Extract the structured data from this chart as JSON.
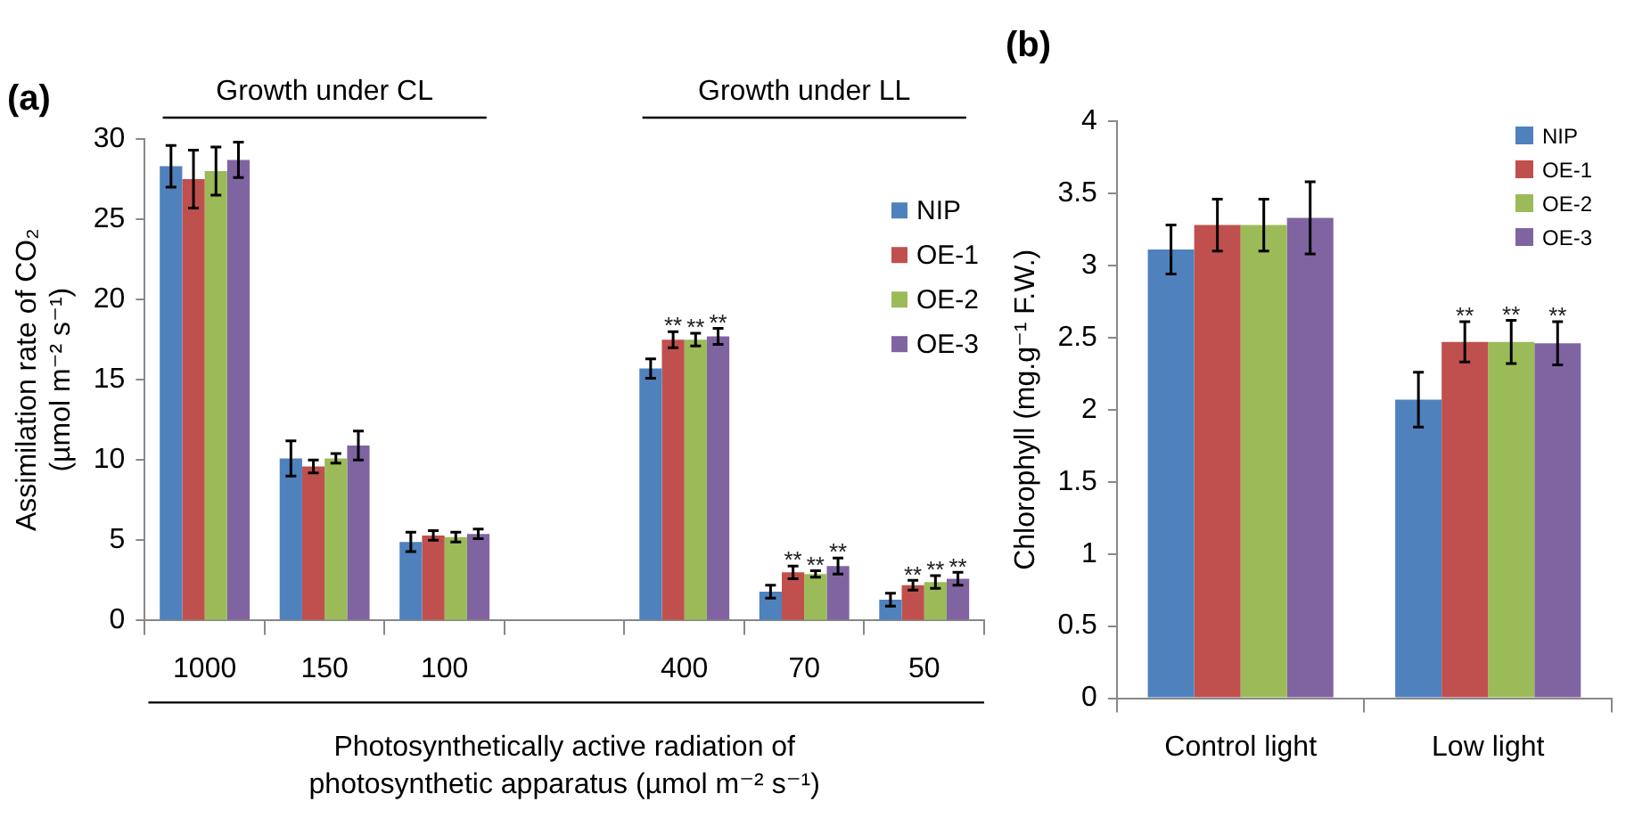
{
  "chart_data": [
    {
      "type": "bar",
      "title": "(a)",
      "ylabel": "Assimilation rate of CO₂ (µmol m⁻² s⁻¹)",
      "xlabel": "Photosynthetically active radiation of photosynthetic apparatus (µmol m⁻² s⁻¹)",
      "categories": [
        "1000",
        "150",
        "100",
        null,
        "400",
        "70",
        "50"
      ],
      "series": [
        {
          "name": "NIP",
          "color": "#4f81bd",
          "values": [
            28.3,
            10.1,
            4.9,
            null,
            15.7,
            1.8,
            1.3
          ],
          "errors": [
            1.3,
            1.1,
            0.6,
            null,
            0.6,
            0.4,
            0.4
          ]
        },
        {
          "name": "OE-1",
          "color": "#c0504d",
          "values": [
            27.5,
            9.6,
            5.3,
            null,
            17.5,
            3.0,
            2.2
          ],
          "errors": [
            1.8,
            0.4,
            0.3,
            null,
            0.5,
            0.4,
            0.3
          ],
          "value_labels": [
            null,
            null,
            null,
            null,
            "**",
            "**",
            "**"
          ]
        },
        {
          "name": "OE-2",
          "color": "#9bbb59",
          "values": [
            28.0,
            10.1,
            5.2,
            null,
            17.5,
            2.9,
            2.4
          ],
          "errors": [
            1.5,
            0.3,
            0.3,
            null,
            0.4,
            0.2,
            0.4
          ],
          "value_labels": [
            null,
            null,
            null,
            null,
            "**",
            "**",
            "**"
          ]
        },
        {
          "name": "OE-3",
          "color": "#8064a2",
          "values": [
            28.7,
            10.9,
            5.4,
            null,
            17.7,
            3.4,
            2.6
          ],
          "errors": [
            1.1,
            0.9,
            0.3,
            null,
            0.5,
            0.5,
            0.4
          ],
          "value_labels": [
            null,
            null,
            null,
            null,
            "**",
            "**",
            "**"
          ]
        }
      ],
      "ylim": [
        0,
        30
      ],
      "yticks": [
        0,
        5,
        10,
        15,
        20,
        25,
        30
      ],
      "grid": false,
      "legend": "right",
      "annotations": [
        "Growth under CL",
        "Growth under LL"
      ]
    },
    {
      "type": "bar",
      "title": "(b)",
      "ylabel": "Chlorophyll (mg.g⁻¹ F.W.)",
      "categories": [
        "Control light",
        "Low light"
      ],
      "series": [
        {
          "name": "NIP",
          "color": "#4f81bd",
          "values": [
            3.11,
            2.07
          ],
          "errors": [
            0.17,
            0.19
          ]
        },
        {
          "name": "OE-1",
          "color": "#c0504d",
          "values": [
            3.28,
            2.47
          ],
          "errors": [
            0.18,
            0.14
          ],
          "value_labels": [
            null,
            "**"
          ]
        },
        {
          "name": "OE-2",
          "color": "#9bbb59",
          "values": [
            3.28,
            2.47
          ],
          "errors": [
            0.18,
            0.15
          ],
          "value_labels": [
            null,
            "**"
          ]
        },
        {
          "name": "OE-3",
          "color": "#8064a2",
          "values": [
            3.33,
            2.46
          ],
          "errors": [
            0.25,
            0.15
          ],
          "value_labels": [
            null,
            "**"
          ]
        }
      ],
      "ylim": [
        0,
        4
      ],
      "yticks": [
        0,
        0.5,
        1,
        1.5,
        2,
        2.5,
        3,
        3.5,
        4
      ],
      "grid": false,
      "legend": "top right"
    }
  ]
}
